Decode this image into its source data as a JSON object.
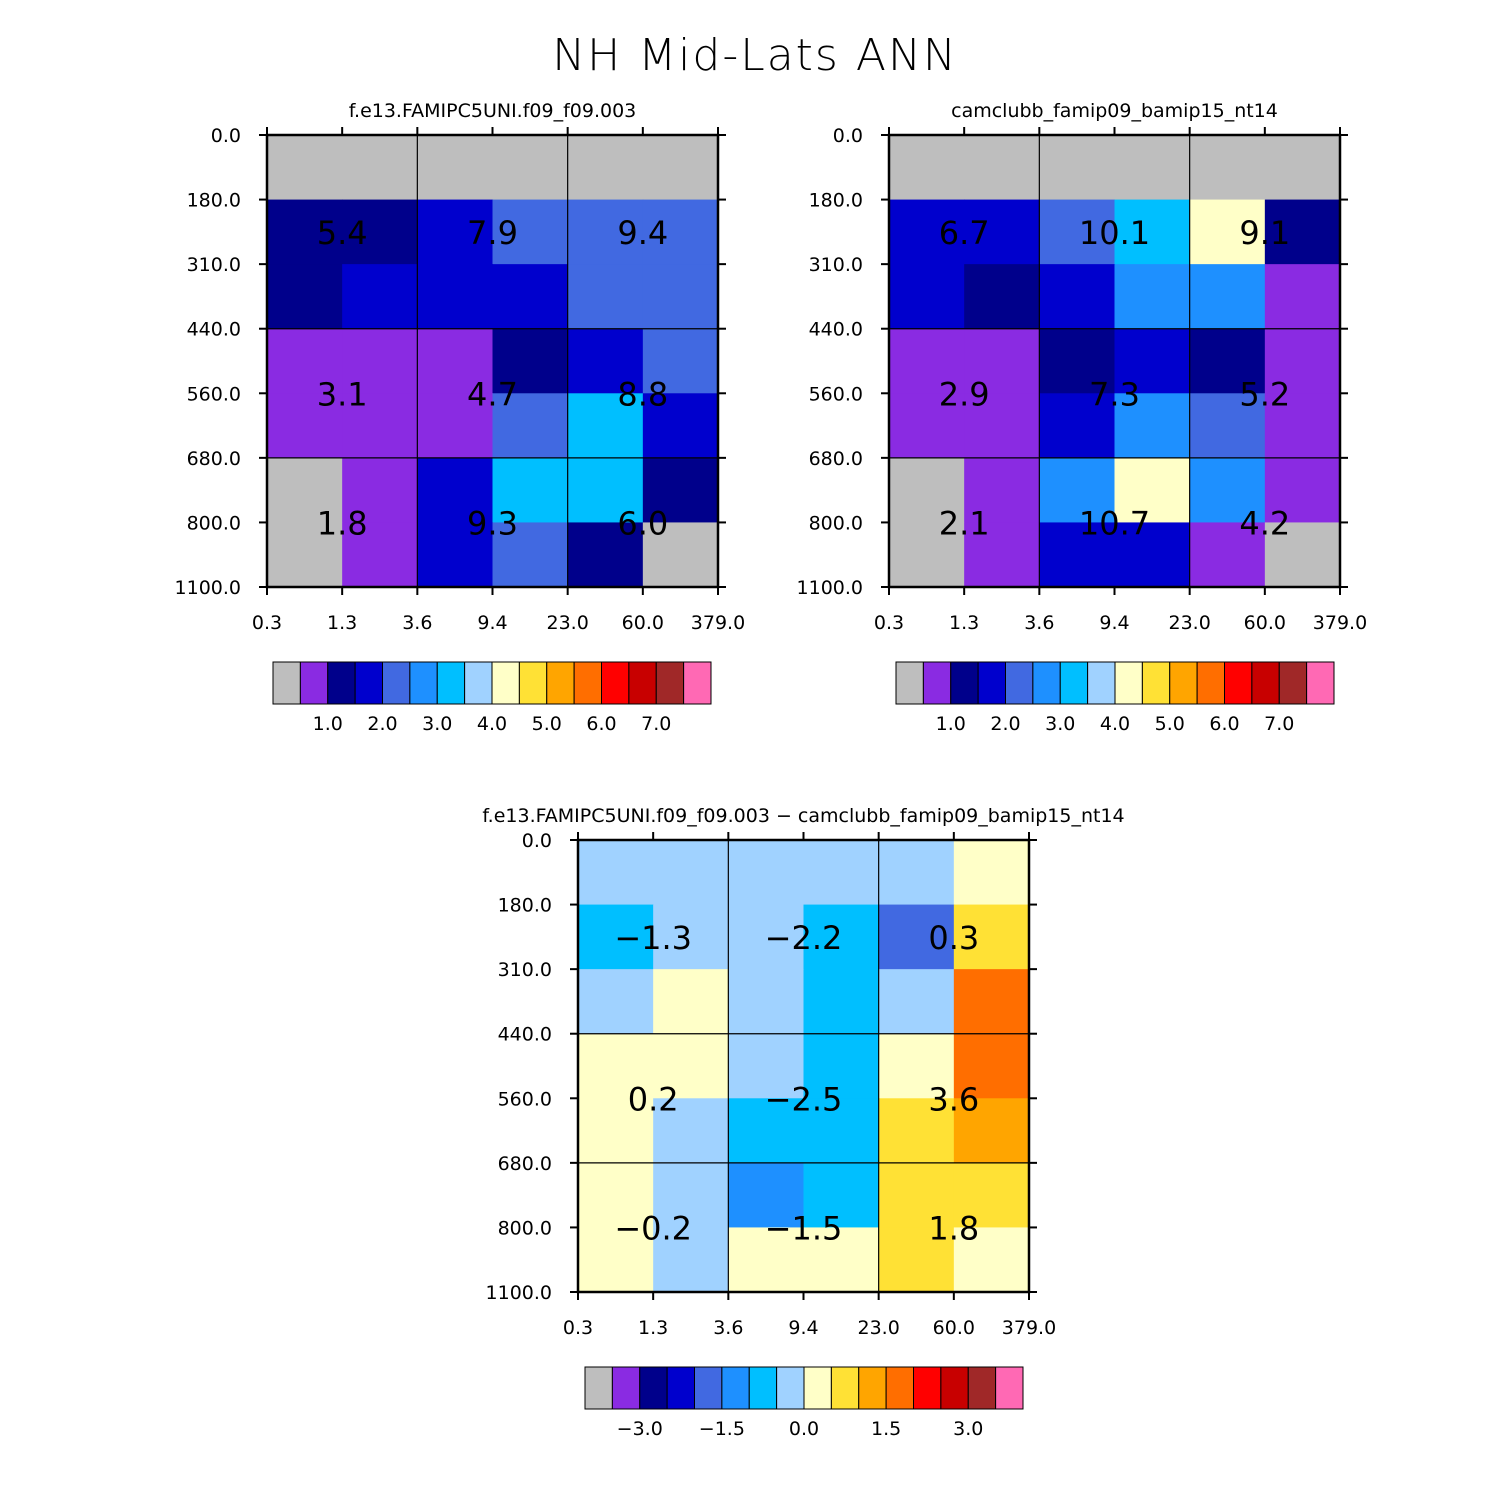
{
  "figure": {
    "title": "NH Mid-Lats ANN"
  },
  "chart_data": [
    {
      "type": "heatmap",
      "title": "f.e13.FAMIPC5UNI.f09_f09.003",
      "x_ticks": [
        "0.3",
        "1.3",
        "3.6",
        "9.4",
        "23.0",
        "60.0",
        "379.0"
      ],
      "y_ticks": [
        "0.0",
        "180.0",
        "310.0",
        "440.0",
        "560.0",
        "680.0",
        "800.0",
        "1100.0"
      ],
      "cell_colors": [
        [
          "#BEBEBE",
          "#BEBEBE",
          "#BEBEBE",
          "#BEBEBE",
          "#BEBEBE",
          "#BEBEBE"
        ],
        [
          "#00008B",
          "#00008B",
          "#0000CD",
          "#4169E1",
          "#4169E1",
          "#4169E1"
        ],
        [
          "#00008B",
          "#0000CD",
          "#0000CD",
          "#0000CD",
          "#4169E1",
          "#4169E1"
        ],
        [
          "#8A2BE2",
          "#8A2BE2",
          "#8A2BE2",
          "#00008B",
          "#0000CD",
          "#4169E1"
        ],
        [
          "#8A2BE2",
          "#8A2BE2",
          "#8A2BE2",
          "#4169E1",
          "#00BFFF",
          "#0000CD"
        ],
        [
          "#BEBEBE",
          "#8A2BE2",
          "#0000CD",
          "#00BFFF",
          "#00BFFF",
          "#00008B"
        ],
        [
          "#BEBEBE",
          "#8A2BE2",
          "#0000CD",
          "#4169E1",
          "#00008B",
          "#BEBEBE"
        ]
      ],
      "block_labels": [
        [
          "5.4",
          "7.9",
          "9.4"
        ],
        [
          "3.1",
          "4.7",
          "8.8"
        ],
        [
          "1.8",
          "9.3",
          "6.0"
        ]
      ],
      "colorbar": {
        "colors": [
          "#BEBEBE",
          "#8A2BE2",
          "#00008B",
          "#0000CD",
          "#4169E1",
          "#1E90FF",
          "#00BFFF",
          "#A0D2FF",
          "#FFFFC8",
          "#FFE135",
          "#FFA500",
          "#FF6E00",
          "#FF0000",
          "#C80000",
          "#A02828",
          "#FF69B4"
        ],
        "labels": [
          "1.0",
          "2.0",
          "3.0",
          "4.0",
          "5.0",
          "6.0",
          "7.0"
        ]
      }
    },
    {
      "type": "heatmap",
      "title": "camclubb_famip09_bamip15_nt14",
      "x_ticks": [
        "0.3",
        "1.3",
        "3.6",
        "9.4",
        "23.0",
        "60.0",
        "379.0"
      ],
      "y_ticks": [
        "0.0",
        "180.0",
        "310.0",
        "440.0",
        "560.0",
        "680.0",
        "800.0",
        "1100.0"
      ],
      "cell_colors": [
        [
          "#BEBEBE",
          "#BEBEBE",
          "#BEBEBE",
          "#BEBEBE",
          "#BEBEBE",
          "#BEBEBE"
        ],
        [
          "#0000CD",
          "#0000CD",
          "#4169E1",
          "#00BFFF",
          "#FFFFC8",
          "#00008B"
        ],
        [
          "#0000CD",
          "#00008B",
          "#0000CD",
          "#1E90FF",
          "#1E90FF",
          "#8A2BE2"
        ],
        [
          "#8A2BE2",
          "#8A2BE2",
          "#00008B",
          "#0000CD",
          "#00008B",
          "#8A2BE2"
        ],
        [
          "#8A2BE2",
          "#8A2BE2",
          "#0000CD",
          "#1E90FF",
          "#4169E1",
          "#8A2BE2"
        ],
        [
          "#BEBEBE",
          "#8A2BE2",
          "#1E90FF",
          "#FFFFC8",
          "#1E90FF",
          "#8A2BE2"
        ],
        [
          "#BEBEBE",
          "#8A2BE2",
          "#0000CD",
          "#0000CD",
          "#8A2BE2",
          "#BEBEBE"
        ]
      ],
      "block_labels": [
        [
          "6.7",
          "10.1",
          "9.1"
        ],
        [
          "2.9",
          "7.3",
          "5.2"
        ],
        [
          "2.1",
          "10.7",
          "4.2"
        ]
      ],
      "colorbar": {
        "colors": [
          "#BEBEBE",
          "#8A2BE2",
          "#00008B",
          "#0000CD",
          "#4169E1",
          "#1E90FF",
          "#00BFFF",
          "#A0D2FF",
          "#FFFFC8",
          "#FFE135",
          "#FFA500",
          "#FF6E00",
          "#FF0000",
          "#C80000",
          "#A02828",
          "#FF69B4"
        ],
        "labels": [
          "1.0",
          "2.0",
          "3.0",
          "4.0",
          "5.0",
          "6.0",
          "7.0"
        ]
      }
    },
    {
      "type": "heatmap",
      "title": "f.e13.FAMIPC5UNI.f09_f09.003 - camclubb_famip09_bamip15_nt14",
      "x_ticks": [
        "0.3",
        "1.3",
        "3.6",
        "9.4",
        "23.0",
        "60.0",
        "379.0"
      ],
      "y_ticks": [
        "0.0",
        "180.0",
        "310.0",
        "440.0",
        "560.0",
        "680.0",
        "800.0",
        "1100.0"
      ],
      "cell_colors": [
        [
          "#A0D2FF",
          "#A0D2FF",
          "#A0D2FF",
          "#A0D2FF",
          "#A0D2FF",
          "#FFFFC8"
        ],
        [
          "#00BFFF",
          "#A0D2FF",
          "#A0D2FF",
          "#00BFFF",
          "#4169E1",
          "#FFE135"
        ],
        [
          "#A0D2FF",
          "#FFFFC8",
          "#A0D2FF",
          "#00BFFF",
          "#A0D2FF",
          "#FF6E00"
        ],
        [
          "#FFFFC8",
          "#FFFFC8",
          "#A0D2FF",
          "#00BFFF",
          "#FFFFC8",
          "#FF6E00"
        ],
        [
          "#FFFFC8",
          "#A0D2FF",
          "#00BFFF",
          "#00BFFF",
          "#FFE135",
          "#FFA500"
        ],
        [
          "#FFFFC8",
          "#A0D2FF",
          "#1E90FF",
          "#00BFFF",
          "#FFE135",
          "#FFE135"
        ],
        [
          "#FFFFC8",
          "#A0D2FF",
          "#FFFFC8",
          "#FFFFC8",
          "#FFE135",
          "#FFFFC8"
        ]
      ],
      "block_labels": [
        [
          "-1.3",
          "-2.2",
          "0.3"
        ],
        [
          "0.2",
          "-2.5",
          "3.6"
        ],
        [
          "-0.2",
          "-1.5",
          "1.8"
        ]
      ],
      "colorbar": {
        "colors": [
          "#BEBEBE",
          "#8A2BE2",
          "#00008B",
          "#0000CD",
          "#4169E1",
          "#1E90FF",
          "#00BFFF",
          "#A0D2FF",
          "#FFFFC8",
          "#FFE135",
          "#FFA500",
          "#FF6E00",
          "#FF0000",
          "#C80000",
          "#A02828",
          "#FF69B4"
        ],
        "labels": [
          "-3.0",
          "-1.5",
          "0.0",
          "1.5",
          "3.0"
        ]
      }
    }
  ]
}
